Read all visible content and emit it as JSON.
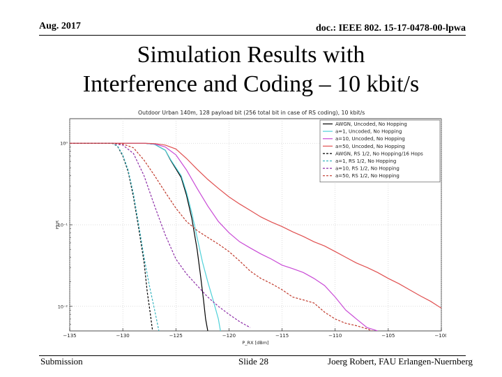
{
  "header": {
    "date": "Aug. 2017",
    "doc_id": "doc.: IEEE 802. 15-17-0478-00-lpwa"
  },
  "slide": {
    "title_line1": "Simulation Results with",
    "title_line2": "Interference and Coding – 10 kbit/s"
  },
  "footer": {
    "left": "Submission",
    "center": "Slide 28",
    "right": "Joerg Robert, FAU Erlangen-Nuernberg"
  },
  "chart_data": {
    "type": "line",
    "title": "Outdoor Urban 140m, 128 payload bit (256 total bit in case of RS coding), 10 kbit/s",
    "xlabel": "P_RX [dBm]",
    "ylabel": "PER",
    "xlim": [
      -135,
      -100
    ],
    "ylim": [
      0.005,
      2
    ],
    "yscale": "log",
    "grid": true,
    "legend_position": "top-right",
    "x_ticks": [
      -135,
      -130,
      -125,
      -120,
      -115,
      -110,
      -105,
      -100
    ],
    "x_tick_labels": [
      "−135",
      "−130",
      "−125",
      "−120",
      "−115",
      "−110",
      "−105",
      "−100"
    ],
    "y_ticks": [
      1,
      0.1,
      0.01
    ],
    "y_tick_labels": [
      "10⁰",
      "10⁻¹",
      "10⁻²"
    ],
    "series": [
      {
        "name": "AWGN, Uncoded, No Hopping",
        "color": "#000000",
        "dash": "solid",
        "x": [
          -135,
          -128,
          -127,
          -126,
          -125.5,
          -124.5,
          -124,
          -123.5,
          -123,
          -122.7,
          -122.4,
          -122.2,
          -122
        ],
        "y": [
          1,
          1,
          0.97,
          0.82,
          0.62,
          0.38,
          0.23,
          0.12,
          0.05,
          0.025,
          0.012,
          0.007,
          0.005
        ]
      },
      {
        "name": "a=1, Uncoded, No Hopping",
        "color": "#4fd1d9",
        "dash": "solid",
        "x": [
          -135,
          -128,
          -127,
          -126,
          -125.5,
          -124.5,
          -124,
          -123.5,
          -123,
          -122.5,
          -122,
          -121.5,
          -121,
          -120.8
        ],
        "y": [
          1,
          1,
          0.97,
          0.82,
          0.63,
          0.4,
          0.25,
          0.14,
          0.07,
          0.035,
          0.02,
          0.012,
          0.007,
          0.005
        ]
      },
      {
        "name": "a=10, Uncoded, No Hopping",
        "color": "#c94bd6",
        "dash": "solid",
        "x": [
          -135,
          -128,
          -127,
          -126,
          -125,
          -124,
          -123,
          -122,
          -121,
          -120,
          -119,
          -118,
          -117,
          -116,
          -115,
          -114,
          -113,
          -112,
          -111,
          -110,
          -109,
          -108,
          -107,
          -106
        ],
        "y": [
          1,
          1,
          0.98,
          0.9,
          0.72,
          0.47,
          0.28,
          0.17,
          0.11,
          0.08,
          0.062,
          0.052,
          0.044,
          0.038,
          0.032,
          0.029,
          0.026,
          0.022,
          0.018,
          0.013,
          0.009,
          0.007,
          0.0055,
          0.005
        ]
      },
      {
        "name": "a=50, Uncoded, No Hopping",
        "color": "#e05050",
        "dash": "solid",
        "x": [
          -135,
          -128,
          -127,
          -126,
          -125,
          -124,
          -123,
          -122,
          -121,
          -120,
          -119,
          -118,
          -117,
          -116,
          -115,
          -114,
          -113,
          -112,
          -111,
          -110,
          -109,
          -108,
          -107,
          -106,
          -105,
          -104,
          -103,
          -102,
          -101,
          -100
        ],
        "y": [
          1,
          1,
          0.99,
          0.95,
          0.85,
          0.65,
          0.48,
          0.36,
          0.28,
          0.22,
          0.18,
          0.15,
          0.125,
          0.108,
          0.095,
          0.082,
          0.072,
          0.062,
          0.055,
          0.047,
          0.04,
          0.034,
          0.03,
          0.026,
          0.022,
          0.019,
          0.016,
          0.0135,
          0.0115,
          0.0095
        ]
      },
      {
        "name": "AWGN, RS 1/2, No Hopping/16 Hops",
        "color": "#000000",
        "dash": "dashed",
        "x": [
          -135,
          -131,
          -130.5,
          -130,
          -129.5,
          -129,
          -128.5,
          -128,
          -127.7,
          -127.4,
          -127.2
        ],
        "y": [
          1,
          1,
          0.92,
          0.7,
          0.45,
          0.22,
          0.09,
          0.035,
          0.015,
          0.008,
          0.005
        ]
      },
      {
        "name": "a=1, RS 1/2, No Hopping",
        "color": "#3ab5c0",
        "dash": "dashed",
        "x": [
          -135,
          -131,
          -130.5,
          -130,
          -129.5,
          -129,
          -128.5,
          -128,
          -127.5,
          -127,
          -126.6
        ],
        "y": [
          1,
          1,
          0.93,
          0.72,
          0.47,
          0.24,
          0.1,
          0.04,
          0.018,
          0.009,
          0.005
        ]
      },
      {
        "name": "a=10, RS 1/2, No Hopping",
        "color": "#8e2fa8",
        "dash": "dashed",
        "x": [
          -135,
          -131,
          -130,
          -129,
          -128,
          -127,
          -126,
          -125,
          -124,
          -123,
          -122,
          -121,
          -120,
          -119,
          -118
        ],
        "y": [
          1,
          1,
          0.95,
          0.75,
          0.4,
          0.17,
          0.075,
          0.038,
          0.025,
          0.018,
          0.013,
          0.01,
          0.008,
          0.0065,
          0.0055
        ]
      },
      {
        "name": "a=50, RS 1/2, No Hopping",
        "color": "#c0392b",
        "dash": "dashed",
        "x": [
          -135,
          -131,
          -130,
          -129,
          -128,
          -127,
          -126,
          -125,
          -124,
          -123,
          -122,
          -121,
          -120,
          -119,
          -118,
          -117,
          -116,
          -115,
          -114,
          -113,
          -112,
          -111,
          -110,
          -109,
          -108,
          -107,
          -106.5
        ],
        "y": [
          1,
          1,
          0.98,
          0.88,
          0.62,
          0.4,
          0.25,
          0.16,
          0.11,
          0.085,
          0.07,
          0.058,
          0.047,
          0.036,
          0.027,
          0.022,
          0.019,
          0.016,
          0.013,
          0.012,
          0.011,
          0.0085,
          0.007,
          0.0062,
          0.0058,
          0.0053,
          0.005
        ]
      }
    ]
  }
}
